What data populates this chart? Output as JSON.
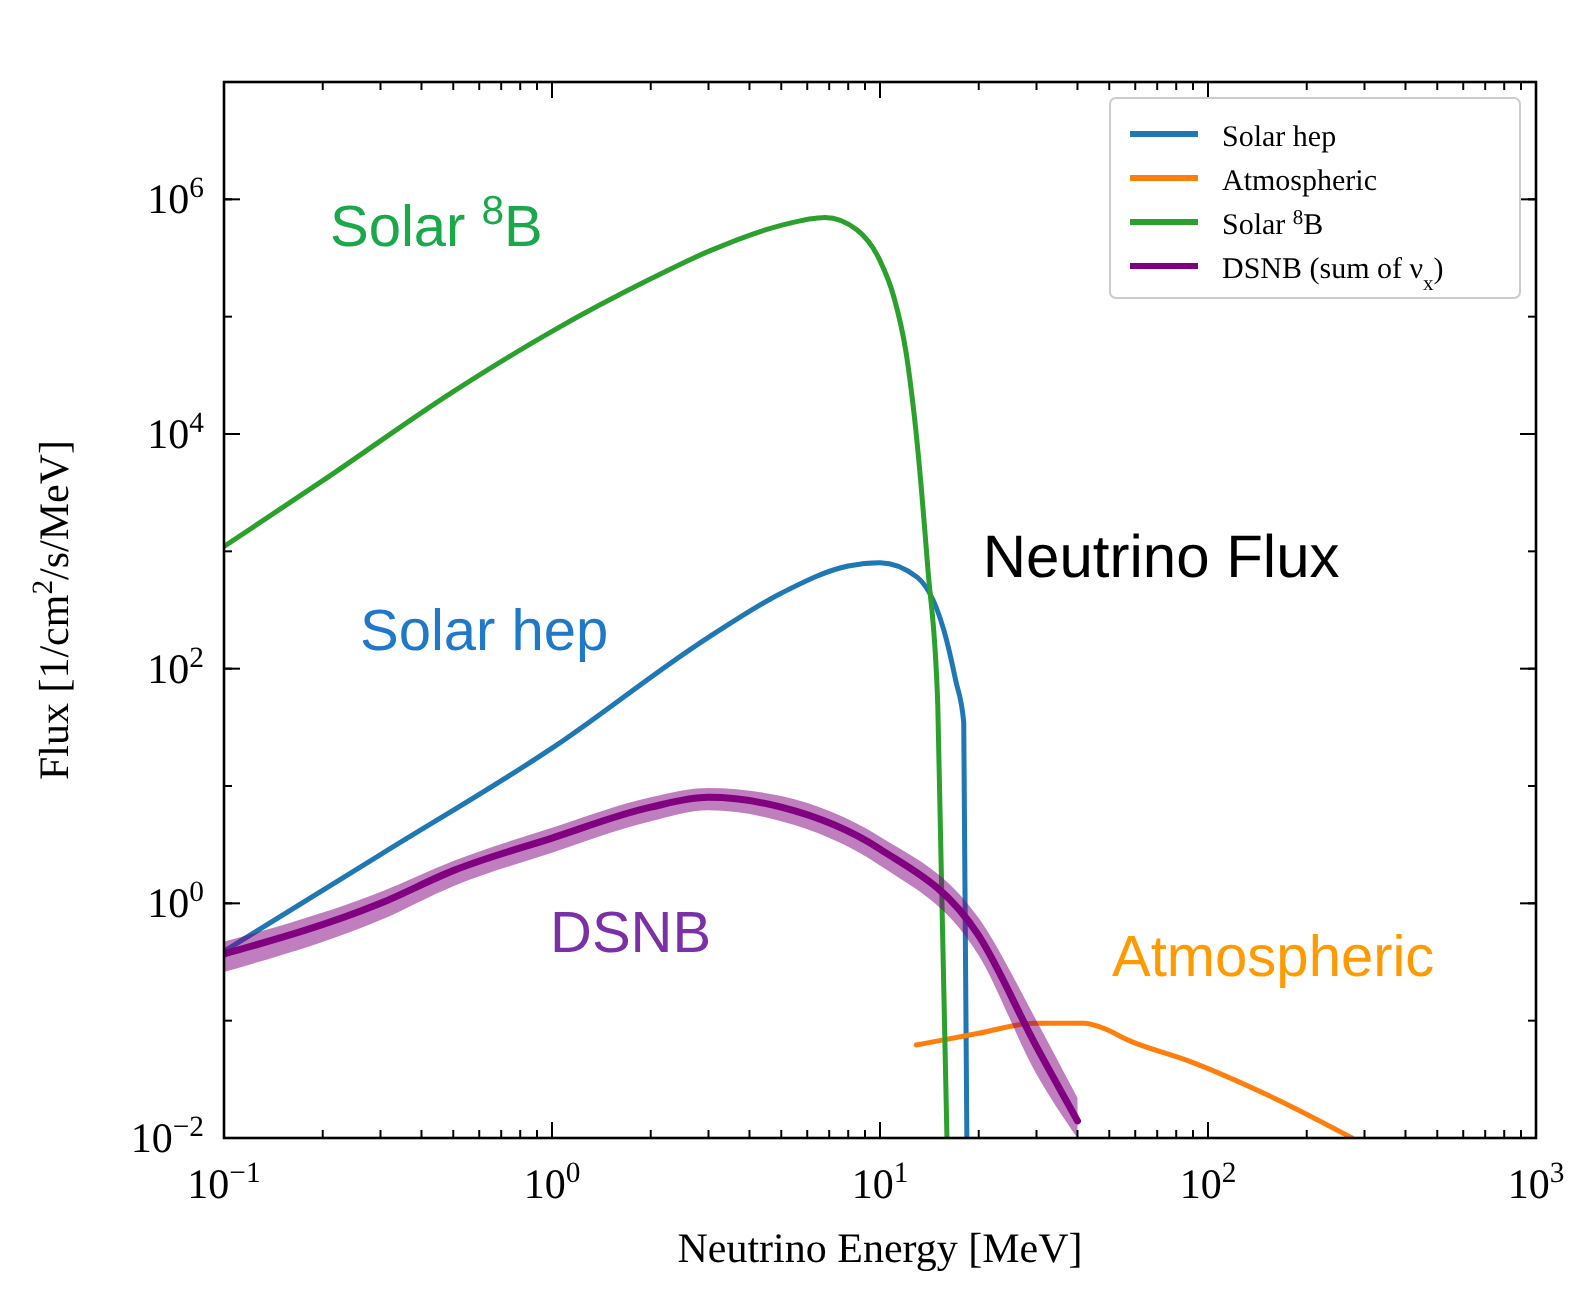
{
  "chart_data": {
    "type": "line",
    "title": "Neutrino Flux",
    "xlabel": "Neutrino Energy [MeV]",
    "ylabel": "Flux [1/cm$^{2}$/s/MeV]",
    "log": "xy",
    "xlim": [
      0.1,
      1000
    ],
    "ylim": [
      0.01,
      10000000
    ],
    "xticks": [
      {
        "value": 0.1,
        "label": "10$^{−1}$"
      },
      {
        "value": 1,
        "label": "10$^{0}$"
      },
      {
        "value": 10,
        "label": "10$^{1}$"
      },
      {
        "value": 100,
        "label": "10$^{2}$"
      },
      {
        "value": 1000,
        "label": "10$^{3}$"
      }
    ],
    "yticks": [
      {
        "value": 0.01,
        "label": "10$^{−2}$"
      },
      {
        "value": 1,
        "label": "10$^{0}$"
      },
      {
        "value": 100,
        "label": "10$^{2}$"
      },
      {
        "value": 10000,
        "label": "10$^{4}$"
      },
      {
        "value": 1000000,
        "label": "10$^{6}$"
      }
    ],
    "legend": "top right",
    "grid": false,
    "marker": "none",
    "line_style": "solid",
    "series": [
      {
        "name": "Solar hep",
        "color": "#1f77b4",
        "x": [
          0.1,
          0.3,
          1,
          3,
          5,
          8,
          10,
          13,
          16,
          17,
          18,
          18.4
        ],
        "values": [
          0.39,
          2.6,
          21,
          185,
          440,
          750,
          800,
          600,
          170,
          80,
          35,
          0.01
        ]
      },
      {
        "name": "Atmospheric",
        "color": "#ff7f0e",
        "x": [
          12.9,
          20,
          29.5,
          42,
          47,
          58,
          88,
          164,
          275
        ],
        "values": [
          0.062,
          0.078,
          0.095,
          0.095,
          0.088,
          0.067,
          0.045,
          0.021,
          0.01
        ]
      },
      {
        "name": "Solar $^{8}$B",
        "color": "#2ca02c",
        "x": [
          0.1,
          0.2,
          0.5,
          1,
          2,
          3,
          5,
          6.8,
          8.5,
          10,
          11,
          12,
          13,
          14,
          15,
          16
        ],
        "values": [
          1100,
          4000,
          23000,
          75000,
          210000,
          360000,
          600000,
          700000,
          550000,
          300000,
          150000,
          50000,
          8000,
          700,
          50,
          0.01
        ]
      },
      {
        "name": "DSNB (sum of ν$_{x}$)",
        "color": "#800080",
        "x": [
          0.1,
          0.3,
          0.5,
          1,
          2,
          3,
          5,
          10,
          20,
          30,
          40
        ],
        "values": [
          0.37,
          1,
          1.9,
          3.6,
          6.6,
          8,
          6.6,
          2.9,
          0.53,
          0.06,
          0.014
        ],
        "lower": [
          0.26,
          0.72,
          1.4,
          2.7,
          5,
          6.2,
          5,
          2.1,
          0.36,
          0.035,
          0.01
        ],
        "upper": [
          0.47,
          1.25,
          2.3,
          4.4,
          8,
          9.6,
          8.2,
          3.7,
          0.75,
          0.1,
          0.022
        ]
      }
    ],
    "annotations": [
      "Solar $^{8}$B",
      "Solar hep",
      "DSNB",
      "Atmospheric"
    ]
  }
}
